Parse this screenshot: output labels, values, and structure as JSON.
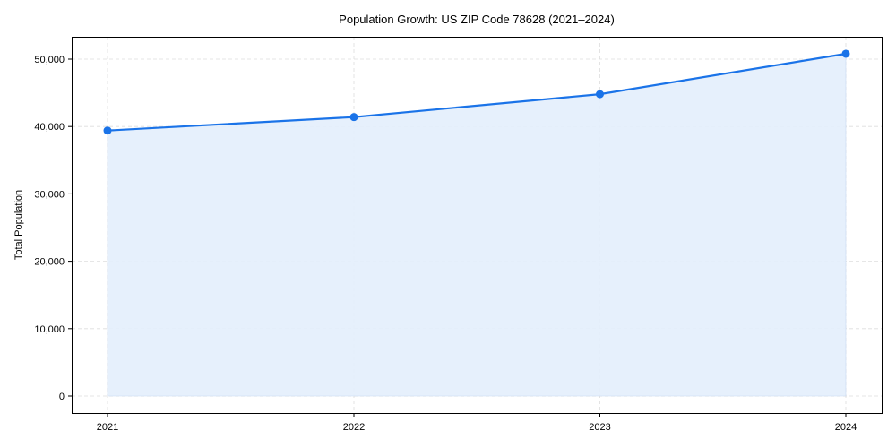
{
  "chart_data": {
    "type": "area",
    "title": "Population Growth: US ZIP Code 78628 (2021–2024)",
    "xlabel": "",
    "ylabel": "Total Population",
    "categories": [
      "2021",
      "2022",
      "2023",
      "2024"
    ],
    "series": [
      {
        "name": "Total Population",
        "values": [
          39400,
          41400,
          44800,
          50800
        ]
      }
    ],
    "yticks": [
      0,
      10000,
      20000,
      30000,
      40000,
      50000
    ],
    "ytick_labels": [
      "0",
      "10,000",
      "20,000",
      "30,000",
      "40,000",
      "50,000"
    ],
    "ylim": [
      -2500,
      53300
    ],
    "grid": true,
    "legend": null,
    "colors": {
      "line": "#1a73e8",
      "fill": "#e3eefc",
      "grid": "#dddddd",
      "axis": "#000000"
    }
  }
}
